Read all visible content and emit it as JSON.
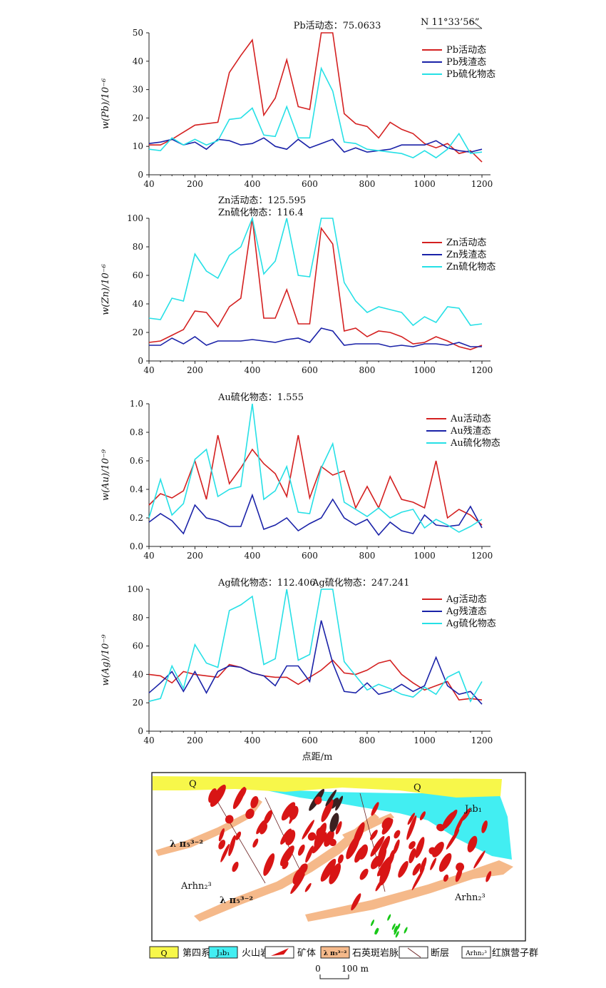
{
  "north_label": "N 11°33’56”",
  "xlabel": "点距/m",
  "colors": {
    "active": "#d42020",
    "residue": "#1a22a8",
    "sulfide": "#26e0e6"
  },
  "chart_data": [
    {
      "type": "line",
      "id": "pb",
      "ylabel": "w(Pb)/10⁻⁶",
      "xlim": [
        40,
        1200
      ],
      "ylim": [
        0,
        50
      ],
      "xticks": [
        40,
        200,
        400,
        600,
        800,
        1000,
        1200
      ],
      "yticks": [
        0,
        10,
        20,
        30,
        40,
        50
      ],
      "x": [
        40,
        80,
        120,
        160,
        200,
        240,
        280,
        320,
        360,
        400,
        440,
        480,
        520,
        560,
        600,
        640,
        680,
        720,
        760,
        800,
        840,
        880,
        920,
        960,
        1000,
        1040,
        1080,
        1120,
        1160,
        1200
      ],
      "series": [
        {
          "name": "Pb活动态",
          "key": "active",
          "values": [
            10.5,
            10.5,
            12.5,
            15,
            17.5,
            18,
            18.5,
            36,
            42,
            47.5,
            21,
            27,
            40.5,
            24,
            23,
            50,
            50,
            21.5,
            18,
            17,
            13,
            18.5,
            16,
            14.5,
            11,
            9.5,
            11,
            7.5,
            8.5,
            4.5
          ]
        },
        {
          "name": "Pb残渣态",
          "key": "residue",
          "values": [
            11,
            11.5,
            12.5,
            10.5,
            11.5,
            9,
            12.5,
            12,
            10.5,
            11,
            13,
            10,
            9,
            12.5,
            9.5,
            11,
            12.5,
            8,
            9.5,
            8,
            8.5,
            9,
            10.5,
            10.5,
            10.5,
            12,
            9.5,
            8.5,
            8,
            9
          ]
        },
        {
          "name": "Pb硫化物态",
          "key": "sulfide",
          "values": [
            9,
            8.5,
            13,
            10.5,
            12.5,
            10.5,
            12,
            19.5,
            20,
            23.5,
            14,
            13.5,
            24,
            13,
            13,
            37.5,
            29.5,
            11.5,
            11,
            9,
            8.5,
            8,
            7.5,
            6,
            8.5,
            6,
            9,
            14.5,
            7.5,
            8
          ]
        }
      ],
      "annotations": [
        {
          "text": "Pb活动态：75.0633"
        }
      ]
    },
    {
      "type": "line",
      "id": "zn",
      "ylabel": "w(Zn)/10⁻⁶",
      "xlim": [
        40,
        1200
      ],
      "ylim": [
        0,
        100
      ],
      "xticks": [
        40,
        200,
        400,
        600,
        800,
        1000,
        1200
      ],
      "yticks": [
        0,
        20,
        40,
        60,
        80,
        100
      ],
      "x": [
        40,
        80,
        120,
        160,
        200,
        240,
        280,
        320,
        360,
        400,
        440,
        480,
        520,
        560,
        600,
        640,
        680,
        720,
        760,
        800,
        840,
        880,
        920,
        960,
        1000,
        1040,
        1080,
        1120,
        1160,
        1200
      ],
      "series": [
        {
          "name": "Zn活动态",
          "key": "active",
          "values": [
            13,
            14,
            18,
            22,
            35,
            34,
            24,
            38,
            44,
            100,
            30,
            30,
            50,
            26,
            26,
            93,
            82,
            21,
            23,
            17,
            21,
            20,
            17,
            12,
            13,
            17,
            14,
            10,
            8,
            11
          ]
        },
        {
          "name": "Zn残渣态",
          "key": "residue",
          "values": [
            11,
            11,
            16,
            12,
            17,
            11,
            14,
            14,
            14,
            15,
            14,
            13,
            15,
            16,
            13,
            23,
            21,
            11,
            12,
            12,
            12,
            10,
            11,
            10,
            12,
            12,
            11,
            13,
            10,
            10
          ]
        },
        {
          "name": "Zn硫化物态",
          "key": "sulfide",
          "values": [
            30,
            29,
            44,
            42,
            75,
            63,
            58,
            74,
            80,
            100,
            61,
            70,
            100,
            60,
            59,
            100,
            100,
            55,
            42,
            34,
            38,
            36,
            34,
            25,
            31,
            27,
            38,
            37,
            25,
            26
          ]
        }
      ],
      "annotations": [
        {
          "text": "Zn活动态：125.595"
        },
        {
          "text": "Zn硫化物态：116.4"
        }
      ]
    },
    {
      "type": "line",
      "id": "au",
      "ylabel": "w(Au)/10⁻⁹",
      "xlim": [
        40,
        1200
      ],
      "ylim": [
        0,
        1.0
      ],
      "xticks": [
        40,
        200,
        400,
        600,
        800,
        1000,
        1200
      ],
      "yticks": [
        0,
        0.2,
        0.4,
        0.6,
        0.8,
        1.0
      ],
      "x": [
        40,
        80,
        120,
        160,
        200,
        240,
        280,
        320,
        360,
        400,
        440,
        480,
        520,
        560,
        600,
        640,
        680,
        720,
        760,
        800,
        840,
        880,
        920,
        960,
        1000,
        1040,
        1080,
        1120,
        1160,
        1200
      ],
      "series": [
        {
          "name": "Au活动态",
          "key": "active",
          "values": [
            0.29,
            0.37,
            0.34,
            0.39,
            0.6,
            0.33,
            0.78,
            0.44,
            0.55,
            0.68,
            0.58,
            0.51,
            0.35,
            0.78,
            0.34,
            0.56,
            0.5,
            0.53,
            0.27,
            0.42,
            0.27,
            0.49,
            0.33,
            0.31,
            0.27,
            0.6,
            0.2,
            0.26,
            0.22,
            0.15
          ]
        },
        {
          "name": "Au残渣态",
          "key": "residue",
          "values": [
            0.17,
            0.23,
            0.18,
            0.09,
            0.29,
            0.2,
            0.18,
            0.14,
            0.14,
            0.36,
            0.12,
            0.15,
            0.2,
            0.11,
            0.16,
            0.2,
            0.33,
            0.2,
            0.15,
            0.19,
            0.08,
            0.17,
            0.11,
            0.09,
            0.22,
            0.15,
            0.14,
            0.15,
            0.28,
            0.13
          ]
        },
        {
          "name": "Au硫化物态",
          "key": "sulfide",
          "values": [
            0.2,
            0.47,
            0.22,
            0.3,
            0.61,
            0.68,
            0.35,
            0.4,
            0.42,
            1.0,
            0.33,
            0.39,
            0.56,
            0.24,
            0.23,
            0.55,
            0.72,
            0.31,
            0.26,
            0.21,
            0.27,
            0.2,
            0.24,
            0.26,
            0.13,
            0.19,
            0.15,
            0.1,
            0.14,
            0.19
          ]
        }
      ],
      "annotations": [
        {
          "text": "Au硫化物态：1.555"
        }
      ]
    },
    {
      "type": "line",
      "id": "ag",
      "ylabel": "w(Ag)/10⁻⁹",
      "xlim": [
        40,
        1200
      ],
      "ylim": [
        0,
        100
      ],
      "xticks": [
        40,
        200,
        400,
        600,
        800,
        1000,
        1200
      ],
      "yticks": [
        0,
        20,
        40,
        60,
        80,
        100
      ],
      "x": [
        40,
        80,
        120,
        160,
        200,
        240,
        280,
        320,
        360,
        400,
        440,
        480,
        520,
        560,
        600,
        640,
        680,
        720,
        760,
        800,
        840,
        880,
        920,
        960,
        1000,
        1040,
        1080,
        1120,
        1160,
        1200
      ],
      "series": [
        {
          "name": "Ag活动态",
          "key": "active",
          "values": [
            40,
            39,
            34,
            42,
            40,
            39,
            38,
            47,
            45,
            41,
            39,
            38,
            38,
            33,
            38,
            43,
            50,
            41,
            40,
            43,
            48,
            50,
            40,
            34,
            29,
            32,
            35,
            22,
            23,
            22
          ]
        },
        {
          "name": "Ag残渣态",
          "key": "residue",
          "values": [
            27,
            34,
            42,
            28,
            42,
            27,
            42,
            46,
            45,
            41,
            39,
            32,
            46,
            46,
            35,
            78,
            48,
            28,
            27,
            34,
            26,
            28,
            33,
            28,
            32,
            52,
            32,
            26,
            28,
            19
          ]
        },
        {
          "name": "Ag硫化物态",
          "key": "sulfide",
          "values": [
            21,
            23,
            46,
            30,
            61,
            48,
            45,
            85,
            89,
            95,
            47,
            51,
            100,
            50,
            54,
            100,
            100,
            49,
            39,
            29,
            33,
            30,
            26,
            24,
            31,
            26,
            38,
            42,
            21,
            35
          ]
        }
      ],
      "annotations": [
        {
          "text": "Ag硫化物态：112.406"
        },
        {
          "text": "Ag硫化物态：247.241"
        }
      ]
    }
  ],
  "section": {
    "labels": {
      "q_left": "Q",
      "q_right": "Q",
      "volcanic": "J₃b₁",
      "dike_left": "λ π₅³⁻²",
      "dike_mid": "λ π₅³⁻²",
      "group_left": "Arhn₂³",
      "group_right": "Arhn₂³"
    },
    "colors": {
      "q": "#f7f74a",
      "volcanic": "#42eef2",
      "dike": "#f5b98a",
      "ore": "#d81515",
      "dark_ore": "#3a2020",
      "green": "#18c818"
    }
  },
  "legend": [
    {
      "swatch": "Q",
      "label": "第四系",
      "fill": "#f7f74a"
    },
    {
      "swatch": "J₃b₁",
      "label": "火山岩",
      "fill": "#42eef2"
    },
    {
      "swatch": "",
      "label": "矿体",
      "fill": "#ffffff"
    },
    {
      "swatch": "λ π₅³⁻²",
      "label": "石英斑岩脉",
      "fill": "#f5b98a"
    },
    {
      "swatch": "",
      "label": "断层",
      "fill": "#ffffff"
    },
    {
      "swatch": "Arhn₂³",
      "label": "红旗营子群",
      "fill": "#ffffff"
    }
  ],
  "scale_bar": {
    "start": "0",
    "end": "100 m"
  }
}
